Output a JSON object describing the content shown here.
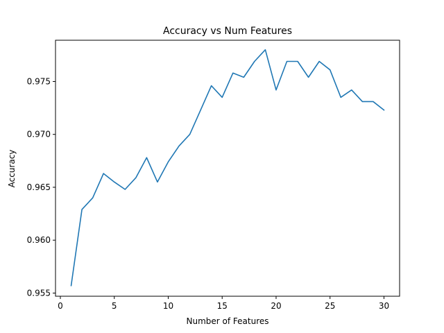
{
  "chart_data": {
    "type": "line",
    "title": "Accuracy vs Num Features",
    "xlabel": "Number of Features",
    "ylabel": "Accuracy",
    "xlim": [
      -0.45,
      31.45
    ],
    "ylim": [
      0.9547,
      0.9789
    ],
    "xticks": [
      0,
      5,
      10,
      15,
      20,
      25,
      30
    ],
    "xtick_labels": [
      "0",
      "5",
      "10",
      "15",
      "20",
      "25",
      "30"
    ],
    "yticks": [
      0.955,
      0.96,
      0.965,
      0.97,
      0.975
    ],
    "ytick_labels": [
      "0.955",
      "0.960",
      "0.965",
      "0.970",
      "0.975"
    ],
    "grid": false,
    "series": [
      {
        "color": "#1f77b4",
        "x": [
          1,
          2,
          3,
          4,
          5,
          6,
          7,
          8,
          9,
          10,
          11,
          12,
          13,
          14,
          15,
          16,
          17,
          18,
          19,
          20,
          21,
          22,
          23,
          24,
          25,
          26,
          27,
          28,
          29,
          30
        ],
        "y": [
          0.9557,
          0.9629,
          0.964,
          0.9663,
          0.9655,
          0.9648,
          0.9659,
          0.9678,
          0.9655,
          0.9674,
          0.9689,
          0.97,
          0.9723,
          0.9746,
          0.9735,
          0.9758,
          0.9754,
          0.9769,
          0.978,
          0.9742,
          0.9769,
          0.9769,
          0.9754,
          0.9769,
          0.9761,
          0.9735,
          0.9742,
          0.9731,
          0.9731,
          0.9723
        ]
      }
    ]
  }
}
